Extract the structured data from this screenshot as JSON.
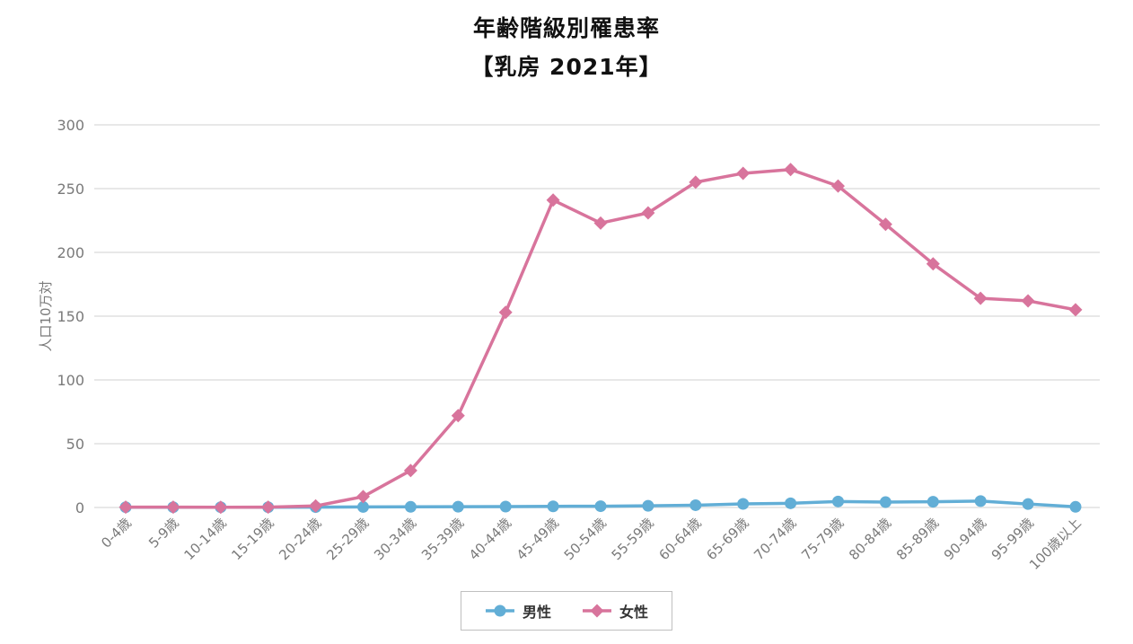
{
  "title": {
    "line1": "年齢階級別罹患率",
    "line2": "【乳房 2021年】"
  },
  "chart_data": {
    "type": "line",
    "title": "年齢階級別罹患率",
    "subtitle": "【乳房 2021年】",
    "xlabel": "",
    "ylabel": "人口10万対",
    "ylim": [
      0,
      300
    ],
    "yticks": [
      0,
      50,
      100,
      150,
      200,
      250,
      300
    ],
    "grid": true,
    "grid_color": "#e8e8e8",
    "tick_color": "#7a7a7a",
    "legend_position": "bottom",
    "categories": [
      "0-4歳",
      "5-9歳",
      "10-14歳",
      "15-19歳",
      "20-24歳",
      "25-29歳",
      "30-34歳",
      "35-39歳",
      "40-44歳",
      "45-49歳",
      "50-54歳",
      "55-59歳",
      "60-64歳",
      "65-69歳",
      "70-74歳",
      "75-79歳",
      "80-84歳",
      "85-89歳",
      "90-94歳",
      "95-99歳",
      "100歳以上"
    ],
    "series": [
      {
        "id": "male",
        "name": "男性",
        "color": "#62aed6",
        "marker": "circle",
        "values": [
          0.2,
          0.2,
          0.2,
          0.2,
          0.3,
          0.4,
          0.5,
          0.6,
          0.7,
          0.9,
          1.0,
          1.3,
          1.8,
          2.8,
          3.3,
          4.7,
          4.2,
          4.5,
          5.0,
          2.7,
          0.5
        ]
      },
      {
        "id": "female",
        "name": "女性",
        "color": "#d8749c",
        "marker": "diamond",
        "values": [
          0.3,
          0.3,
          0.2,
          0.3,
          1.2,
          8.5,
          29,
          72,
          153,
          241,
          223,
          231,
          255,
          262,
          265,
          252,
          222,
          191,
          164,
          162,
          155
        ]
      }
    ]
  }
}
